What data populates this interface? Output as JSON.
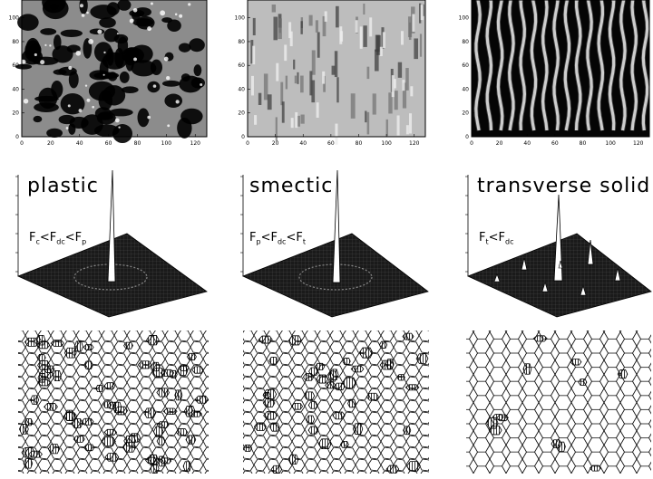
{
  "panels": [
    {
      "id": "left",
      "label": "plastic",
      "inequality": [
        {
          "t": "F",
          "s": "c"
        },
        {
          "t": "<"
        },
        {
          "t": "F",
          "s": "dc"
        },
        {
          "t": "<"
        },
        {
          "t": "F",
          "s": "p"
        }
      ],
      "xticks": [
        "0",
        "20",
        "40",
        "60",
        "80",
        "100",
        "120"
      ],
      "yticks": [
        "0",
        "20",
        "40",
        "60",
        "80",
        "100"
      ]
    },
    {
      "id": "middle",
      "label": "smectic",
      "inequality": [
        {
          "t": "F",
          "s": "p"
        },
        {
          "t": "<"
        },
        {
          "t": "F",
          "s": "dc"
        },
        {
          "t": "<"
        },
        {
          "t": "F",
          "s": "t"
        }
      ],
      "xticks": [
        "0",
        "20",
        "40",
        "60",
        "80",
        "100",
        "120"
      ],
      "yticks": [
        "0",
        "20",
        "40",
        "60",
        "80",
        "100"
      ]
    },
    {
      "id": "right",
      "label": "transverse solid",
      "inequality": [
        {
          "t": "F",
          "s": "t"
        },
        {
          "t": "<"
        },
        {
          "t": "F",
          "s": "dc"
        }
      ],
      "xticks": [
        "0",
        "20",
        "40",
        "60",
        "80",
        "100",
        "120"
      ],
      "yticks": [
        "0",
        "20",
        "40",
        "60",
        "80",
        "100"
      ]
    }
  ]
}
